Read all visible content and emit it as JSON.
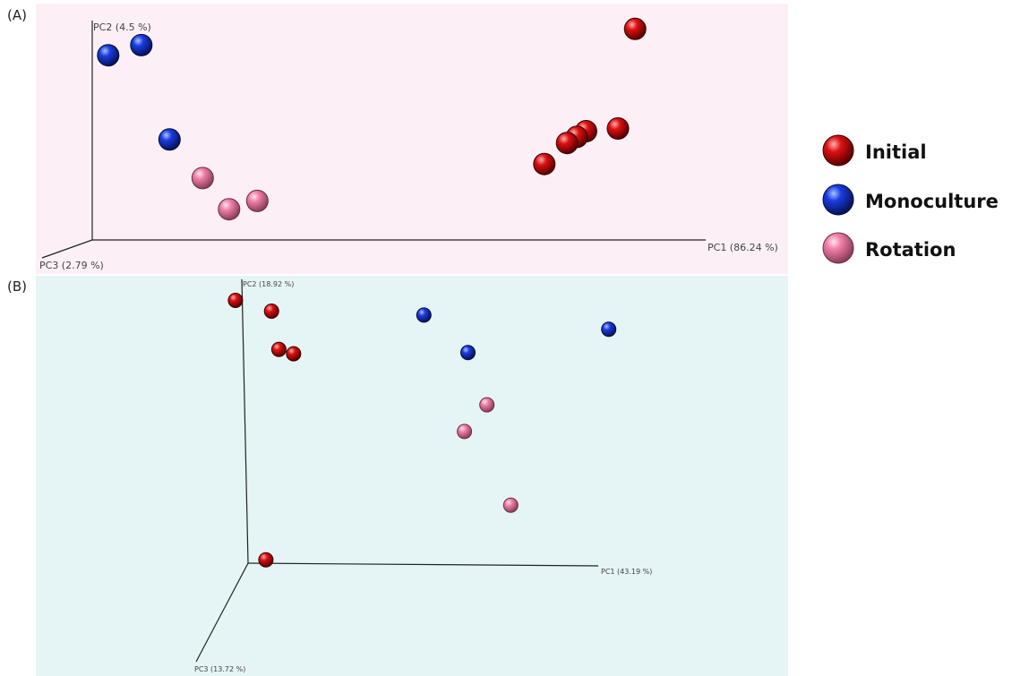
{
  "colors": {
    "panel_a_bg": "#fcf0f6",
    "panel_b_bg": "#e5f4f4",
    "Initial": "#dd1111",
    "Monoculture": "#1a3ce0",
    "Rotation": "#f07fa8"
  },
  "legend": {
    "placement": "right",
    "items": [
      {
        "label": "Initial",
        "group": "Initial"
      },
      {
        "label": "Monoculture",
        "group": "Monoculture"
      },
      {
        "label": "Rotation",
        "group": "Rotation"
      }
    ]
  },
  "chart_data": [
    {
      "type": "scatter",
      "panel_label": "(A)",
      "title": "",
      "xlabel": "PC1 (86.24 %)",
      "ylabel": "PC2 (4.5 %)",
      "zlabel": "PC3 (2.79 %)",
      "xlim": [
        0,
        100
      ],
      "ylim": [
        0,
        100
      ],
      "series": [
        {
          "name": "Initial",
          "points": [
            [
              85.7,
              50.8
            ],
            [
              80.5,
              49.6
            ],
            [
              79.0,
              47.0
            ],
            [
              77.4,
              44.2
            ],
            [
              73.7,
              34.6
            ],
            [
              88.5,
              96.2
            ]
          ]
        },
        {
          "name": "Monoculture",
          "points": [
            [
              2.6,
              84.2
            ],
            [
              8.0,
              88.8
            ],
            [
              12.6,
              45.8
            ]
          ]
        },
        {
          "name": "Rotation",
          "points": [
            [
              18.0,
              28.2
            ],
            [
              22.3,
              14.0
            ],
            [
              26.9,
              17.8
            ]
          ]
        }
      ]
    },
    {
      "type": "scatter",
      "panel_label": "(B)",
      "title": "",
      "xlabel": "PC1 (43.19 %)",
      "ylabel": "PC2 (18.92 %)",
      "zlabel": "PC3 (13.72 %)",
      "xlim": [
        0,
        100
      ],
      "ylim": [
        0,
        100
      ],
      "series": [
        {
          "name": "Initial",
          "points": [
            [
              -3.6,
              92.6
            ],
            [
              6.7,
              88.8
            ],
            [
              8.8,
              75.3
            ],
            [
              13.0,
              73.8
            ],
            [
              5.1,
              1.2
            ]
          ]
        },
        {
          "name": "Monoculture",
          "points": [
            [
              50.2,
              87.4
            ],
            [
              62.8,
              74.2
            ],
            [
              103.0,
              82.4
            ]
          ]
        },
        {
          "name": "Rotation",
          "points": [
            [
              68.2,
              55.8
            ],
            [
              61.8,
              46.4
            ],
            [
              75.0,
              20.4
            ]
          ]
        }
      ]
    }
  ]
}
